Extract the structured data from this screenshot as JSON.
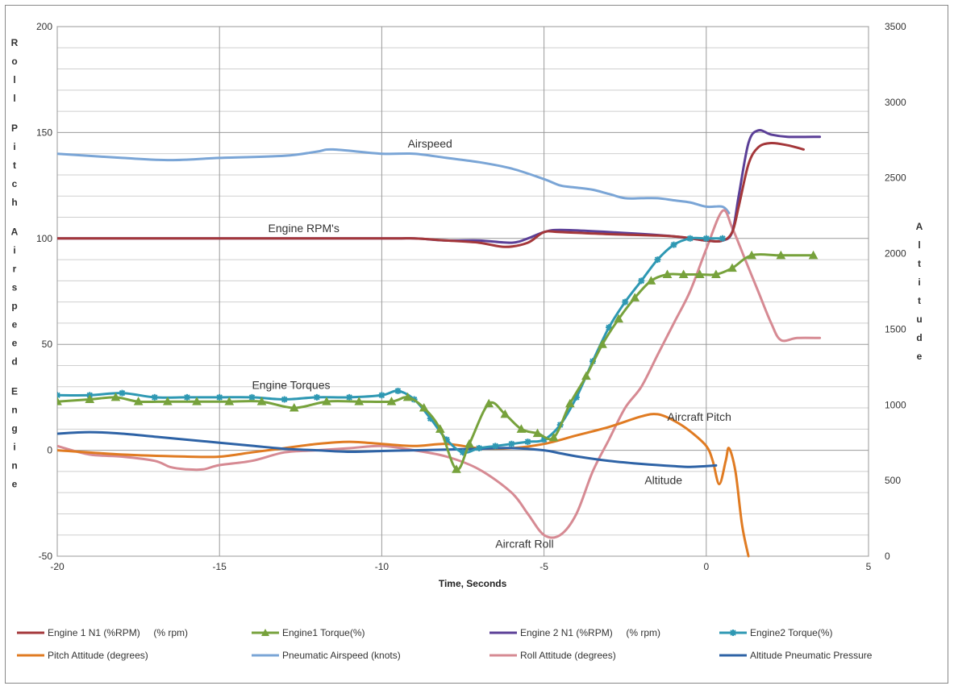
{
  "chart_data": {
    "type": "line",
    "xlabel": "Time, Seconds",
    "xlim": [
      -20,
      5
    ],
    "x_ticks": [
      "-20",
      "-15",
      "-10",
      "-5",
      "0",
      "5"
    ],
    "ylabel_left": "Roll Pitch Airspeed Engine",
    "ylim_left": [
      -50,
      200
    ],
    "y_ticks_left": [
      "200",
      "150",
      "100",
      "50",
      "0",
      "-50"
    ],
    "ylabel_right": "Altitude",
    "ylim_right": [
      0,
      3500
    ],
    "y_ticks_right": [
      "3500",
      "3000",
      "2500",
      "2000",
      "1500",
      "1000",
      "500",
      "0"
    ],
    "grid": true,
    "legend_position": "bottom",
    "annotations": [
      {
        "text": "Airspeed",
        "x": -9.2,
        "y": 143
      },
      {
        "text": "Engine RPM's",
        "x": -13.5,
        "y": 103
      },
      {
        "text": "Engine Torques",
        "x": -14.0,
        "y": 29
      },
      {
        "text": "Aircraft Pitch",
        "x": -1.2,
        "y": 14
      },
      {
        "text": "Altitude",
        "x": -1.9,
        "y": -16
      },
      {
        "text": "Aircraft Roll",
        "x": -6.5,
        "y": -46
      }
    ],
    "series": [
      {
        "name": "Engine 1 N1 (%RPM)     (% rpm)",
        "color": "#a4373a",
        "axis": "left",
        "marker": "none",
        "x": [
          -20,
          -15,
          -10,
          -9,
          -8,
          -7,
          -6.2,
          -5.5,
          -5,
          -4.5,
          -3,
          -1,
          0,
          0.5,
          0.8,
          1.0,
          1.3,
          1.6,
          2.0,
          2.5,
          3.0
        ],
        "y": [
          100,
          100,
          100,
          100,
          99,
          98,
          96,
          98,
          103,
          103,
          102,
          101,
          99,
          99,
          103,
          115,
          135,
          143,
          145,
          144,
          142
        ]
      },
      {
        "name": "Engine1 Torque(%)",
        "color": "#77a23c",
        "axis": "left",
        "marker": "triangle",
        "x": [
          -20,
          -19,
          -18.2,
          -17.5,
          -16.6,
          -15.7,
          -14.7,
          -13.7,
          -12.7,
          -11.7,
          -10.7,
          -9.7,
          -9.2,
          -8.7,
          -8.2,
          -7.7,
          -7.3,
          -6.7,
          -6.2,
          -5.7,
          -5.2,
          -4.7,
          -4.2,
          -3.7,
          -3.2,
          -2.7,
          -2.2,
          -1.7,
          -1.2,
          -0.7,
          -0.2,
          0.3,
          0.8,
          1.4,
          2.3,
          3.3
        ],
        "y": [
          23,
          24,
          25,
          23,
          23,
          23,
          23,
          23,
          20,
          23,
          23,
          23,
          25,
          20,
          10,
          -9,
          3,
          22,
          17,
          10,
          8,
          6,
          22,
          35,
          50,
          62,
          72,
          80,
          83,
          83,
          83,
          83,
          86,
          92,
          92,
          92
        ]
      },
      {
        "name": "Engine 2 N1 (%RPM)     (% rpm)",
        "color": "#5b3f97",
        "axis": "left",
        "marker": "none",
        "x": [
          -20,
          -15,
          -10,
          -9,
          -8,
          -7,
          -6,
          -5.5,
          -5,
          -4.5,
          -3,
          -1,
          0,
          0.5,
          0.8,
          1.0,
          1.3,
          1.6,
          2.0,
          2.5,
          3.5
        ],
        "y": [
          100,
          100,
          100,
          100,
          99,
          99,
          98,
          100,
          103,
          104,
          103,
          101,
          99,
          99,
          103,
          120,
          145,
          151,
          149,
          148,
          148
        ]
      },
      {
        "name": "Engine2 Torque(%)",
        "color": "#2e98b3",
        "axis": "left",
        "marker": "asterisk",
        "x": [
          -20,
          -19,
          -18,
          -17,
          -16,
          -15,
          -14,
          -13,
          -12,
          -11,
          -10,
          -9.5,
          -9,
          -8.5,
          -8,
          -7.5,
          -7,
          -6.5,
          -6,
          -5.5,
          -5,
          -4.5,
          -4,
          -3.5,
          -3,
          -2.5,
          -2,
          -1.5,
          -1,
          -0.5,
          0,
          0.5
        ],
        "y": [
          26,
          26,
          27,
          25,
          25,
          25,
          25,
          24,
          25,
          25,
          26,
          28,
          24,
          15,
          5,
          -1,
          1,
          2,
          3,
          4,
          5,
          12,
          25,
          42,
          58,
          70,
          80,
          90,
          97,
          100,
          100,
          100
        ]
      },
      {
        "name": "Pitch Attitude (degrees)",
        "color": "#e07b22",
        "axis": "left",
        "marker": "none",
        "x": [
          -20,
          -18,
          -16,
          -15,
          -14,
          -13,
          -12,
          -11,
          -10,
          -9,
          -8,
          -7,
          -6,
          -5,
          -4,
          -3,
          -2,
          -1.5,
          -1,
          -0.5,
          0,
          0.2,
          0.4,
          0.6,
          0.7,
          0.9,
          1.1,
          1.3
        ],
        "y": [
          0,
          -2,
          -3,
          -3,
          -1,
          1,
          3,
          4,
          3,
          2,
          3,
          1,
          1,
          3,
          7,
          11,
          16,
          17,
          14,
          9,
          2,
          -5,
          -16,
          -5,
          1,
          -10,
          -35,
          -50
        ]
      },
      {
        "name": "Pneumatic Airspeed (knots)",
        "color": "#7aa5d6",
        "axis": "left",
        "marker": "none",
        "x": [
          -20,
          -18,
          -16.5,
          -15,
          -13,
          -12,
          -11.5,
          -10,
          -9,
          -8,
          -7,
          -6,
          -5,
          -4.5,
          -4,
          -3.5,
          -3,
          -2.5,
          -2,
          -1.5,
          -1,
          -0.5,
          0,
          0.5,
          0.7
        ],
        "y": [
          140,
          138,
          137,
          138,
          139,
          141,
          142,
          140,
          140,
          138,
          136,
          133,
          128,
          125,
          124,
          123,
          121,
          119,
          119,
          119,
          118,
          117,
          115,
          115,
          112
        ]
      },
      {
        "name": "Roll Attitude (degrees)",
        "color": "#d68a93",
        "axis": "left",
        "marker": "none",
        "x": [
          -20,
          -19,
          -18,
          -17,
          -16.5,
          -16,
          -15.5,
          -15,
          -14,
          -13,
          -12,
          -11,
          -10,
          -9,
          -8,
          -7,
          -6,
          -5.5,
          -5,
          -4.5,
          -4,
          -3.5,
          -3,
          -2.5,
          -2,
          -1.5,
          -1,
          -0.5,
          0,
          0.5,
          0.8,
          1.2,
          1.6,
          2.0,
          2.3,
          2.8,
          3.5
        ],
        "y": [
          2,
          -2,
          -3,
          -5,
          -8,
          -9,
          -9,
          -7,
          -5,
          -1,
          0,
          1,
          2,
          0,
          -3,
          -9,
          -20,
          -30,
          -40,
          -40,
          -30,
          -10,
          5,
          20,
          30,
          45,
          60,
          75,
          95,
          113,
          105,
          90,
          75,
          60,
          52,
          53,
          53
        ]
      },
      {
        "name": "Altitude Pneumatic Pressure",
        "color": "#2e63a6",
        "axis": "right",
        "marker": "none",
        "x": [
          -20,
          -19,
          -18,
          -17,
          -16,
          -15,
          -14,
          -13,
          -12,
          -11,
          -10,
          -9,
          -8,
          -7,
          -6,
          -5,
          -4.5,
          -4,
          -3,
          -2,
          -1,
          -0.5,
          0,
          0.3
        ],
        "y": [
          810,
          820,
          810,
          790,
          770,
          750,
          730,
          710,
          700,
          690,
          695,
          700,
          705,
          710,
          715,
          700,
          680,
          660,
          630,
          610,
          595,
          590,
          595,
          600
        ]
      }
    ]
  }
}
